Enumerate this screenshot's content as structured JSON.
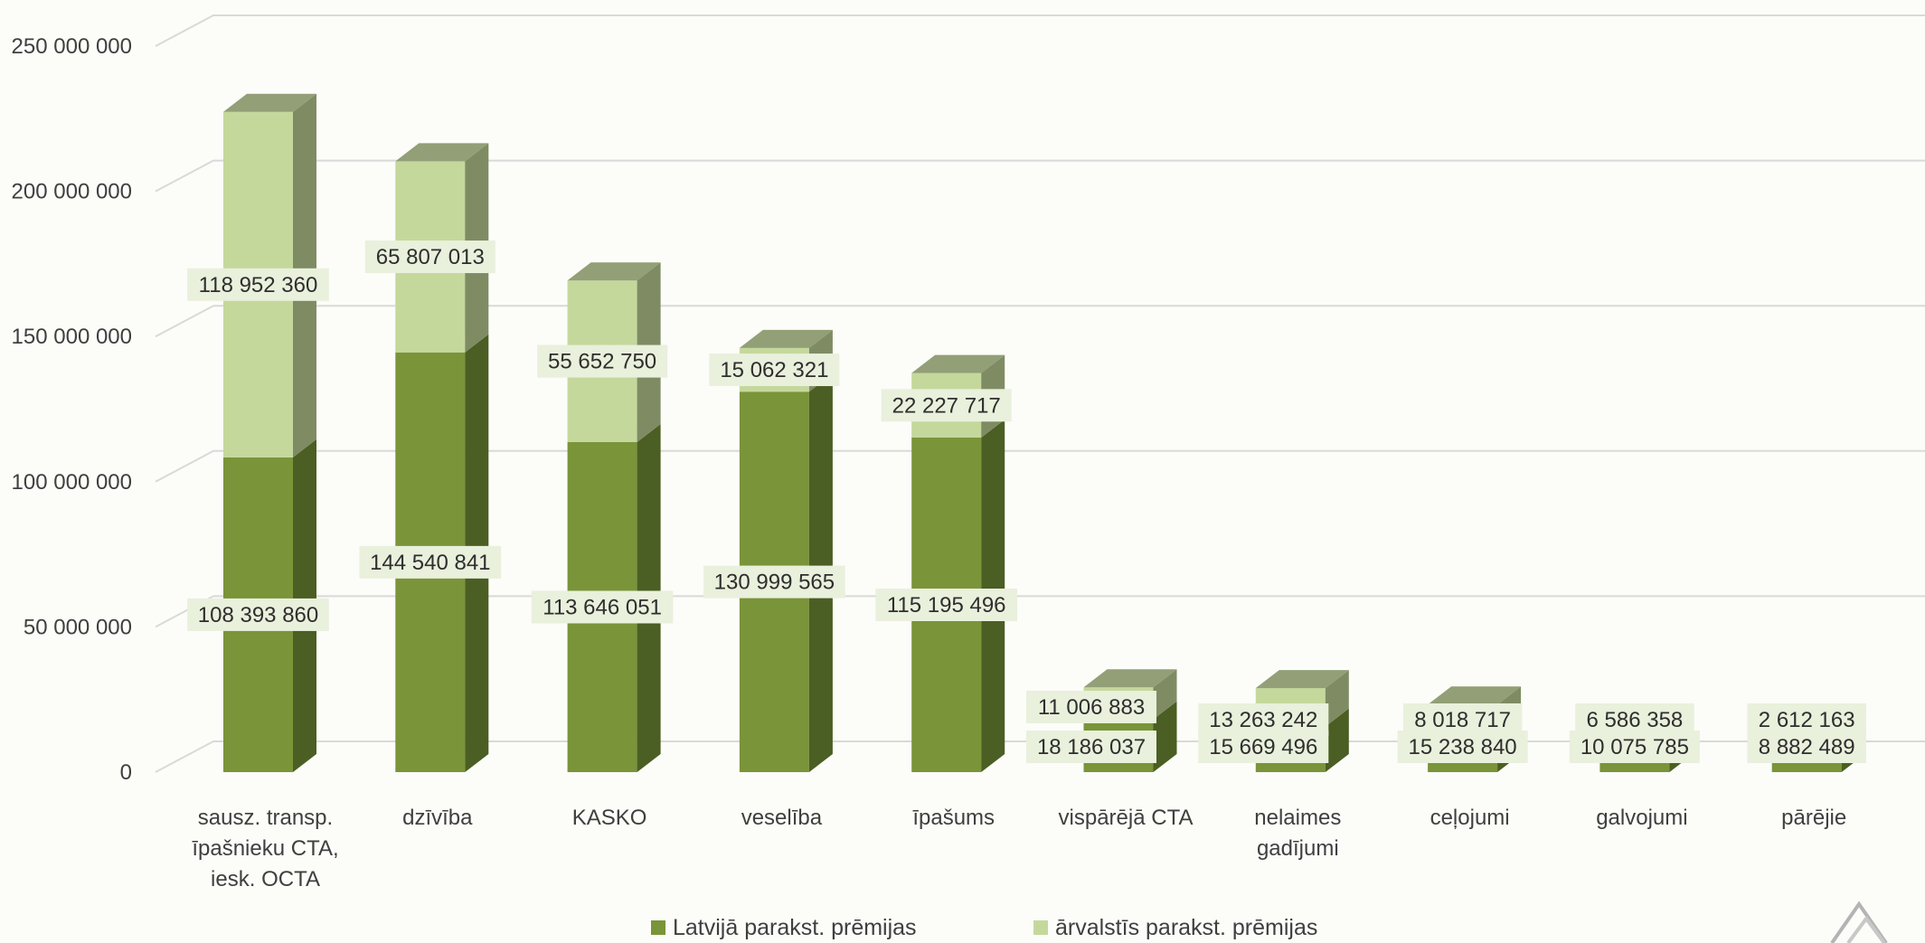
{
  "chart_data": {
    "type": "bar",
    "stacked": true,
    "three_d": true,
    "categories": [
      [
        "sausz. transp.",
        "īpašnieku CTA,",
        "iesk. OCTA"
      ],
      [
        "dzīvība"
      ],
      [
        "KASKO"
      ],
      [
        "veselība"
      ],
      [
        "īpašums"
      ],
      [
        "vispārējā CTA"
      ],
      [
        "nelaimes",
        "gadījumi"
      ],
      [
        "ceļojumi"
      ],
      [
        "galvojumi"
      ],
      [
        "pārējie"
      ]
    ],
    "series": [
      {
        "name": "Latvijā parakst. prēmijas",
        "color": "#7a9439",
        "side_color": "#4b5e23",
        "top_color": "#92a66a",
        "values": [
          108393860,
          144540841,
          113646051,
          130999565,
          115195496,
          18186037,
          15669496,
          15238840,
          10075785,
          8882489
        ],
        "labels": [
          "108 393 860",
          "144 540 841",
          "113 646 051",
          "130 999 565",
          "115 195 496",
          "18 186 037",
          "15 669 496",
          "15 238 840",
          "10 075 785",
          "8 882 489"
        ]
      },
      {
        "name": "ārvalstīs parakst. prēmijas",
        "color": "#c5d89c",
        "side_color": "#7f8c63",
        "top_color": "#929f77",
        "values": [
          118952360,
          65807013,
          55652750,
          15062321,
          22227717,
          11006883,
          13263242,
          8018717,
          6586358,
          2612163
        ],
        "labels": [
          "118 952 360",
          "65 807 013",
          "55 652 750",
          "15 062 321",
          "22 227 717",
          "11 006 883",
          "13 263 242",
          "8 018 717",
          "6 586 358",
          "2 612 163"
        ]
      }
    ],
    "y_ticks": [
      {
        "value": 0,
        "label": "0"
      },
      {
        "value": 50000000,
        "label": "50 000 000"
      },
      {
        "value": 100000000,
        "label": "100 000 000"
      },
      {
        "value": 150000000,
        "label": "150 000 000"
      },
      {
        "value": 200000000,
        "label": "200 000 000"
      },
      {
        "value": 250000000,
        "label": "250 000 000"
      }
    ],
    "ylim": [
      0,
      250000000
    ],
    "grid": true,
    "legend_position": "bottom",
    "gridline_color": "#d9d9d9",
    "label_bg_color": "#e9f0dc"
  }
}
